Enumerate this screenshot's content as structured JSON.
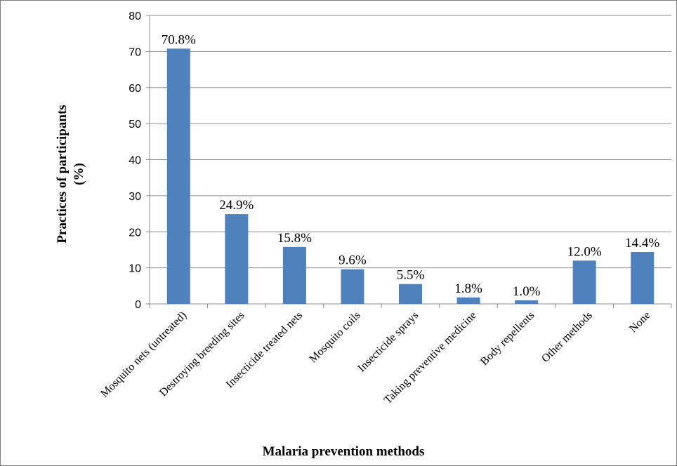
{
  "chart_data": {
    "type": "bar",
    "title": "",
    "xlabel": "Malaria prevention methods",
    "ylabel_lines": [
      "Practices of participants",
      "(%)"
    ],
    "ylim": [
      0,
      80
    ],
    "yticks": [
      "0",
      "10",
      "20",
      "30",
      "40",
      "50",
      "60",
      "70",
      "80"
    ],
    "grid": true,
    "legend": "none",
    "bar_color": "#4f81bd",
    "categories": [
      "Mosquito nets (untreated)",
      "Destroying breeding sites",
      "Insecticide treated nets",
      "Mosquito coils",
      "Insecticide sprays",
      "Taking preventive medicine",
      "Body repellents",
      "Other methods",
      "None"
    ],
    "values": [
      70.8,
      24.9,
      15.8,
      9.6,
      5.5,
      1.8,
      1.0,
      12.0,
      14.4
    ],
    "data_labels": [
      "70.8%",
      "24.9%",
      "15.8%",
      "9.6%",
      "5.5%",
      "1.8%",
      "1.0%",
      "12.0%",
      "14.4%"
    ]
  }
}
